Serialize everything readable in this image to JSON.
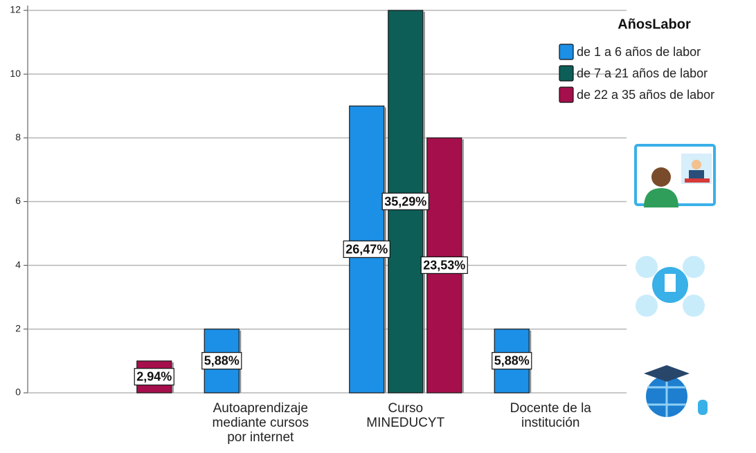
{
  "chart_data": {
    "type": "bar",
    "categories": [
      null,
      "Autoaprendizaje mediante cursos por internet",
      "Curso MINEDUCYT",
      "Docente de la institución"
    ],
    "legend_title": "AñosLabor",
    "series": [
      {
        "name": "de 1 a 6 años de labor",
        "color": "#1c8fe6",
        "values": [
          null,
          2,
          9,
          2
        ],
        "percent_labels": [
          null,
          "5,88%",
          "26,47%",
          "5,88%"
        ]
      },
      {
        "name": "de 7 a 21 años de labor",
        "color": "#0d5e57",
        "values": [
          null,
          null,
          12,
          null
        ],
        "percent_labels": [
          null,
          null,
          "35,29%",
          null
        ]
      },
      {
        "name": "de 22 a 35 años de labor",
        "color": "#a50f4c",
        "values": [
          1,
          null,
          8,
          null
        ],
        "percent_labels": [
          "2,94%",
          null,
          "23,53%",
          null
        ]
      }
    ],
    "ylim": [
      0,
      12
    ],
    "yticks": [
      0,
      2,
      4,
      6,
      8,
      10,
      12
    ],
    "grid": true,
    "legend": "upper right"
  }
}
